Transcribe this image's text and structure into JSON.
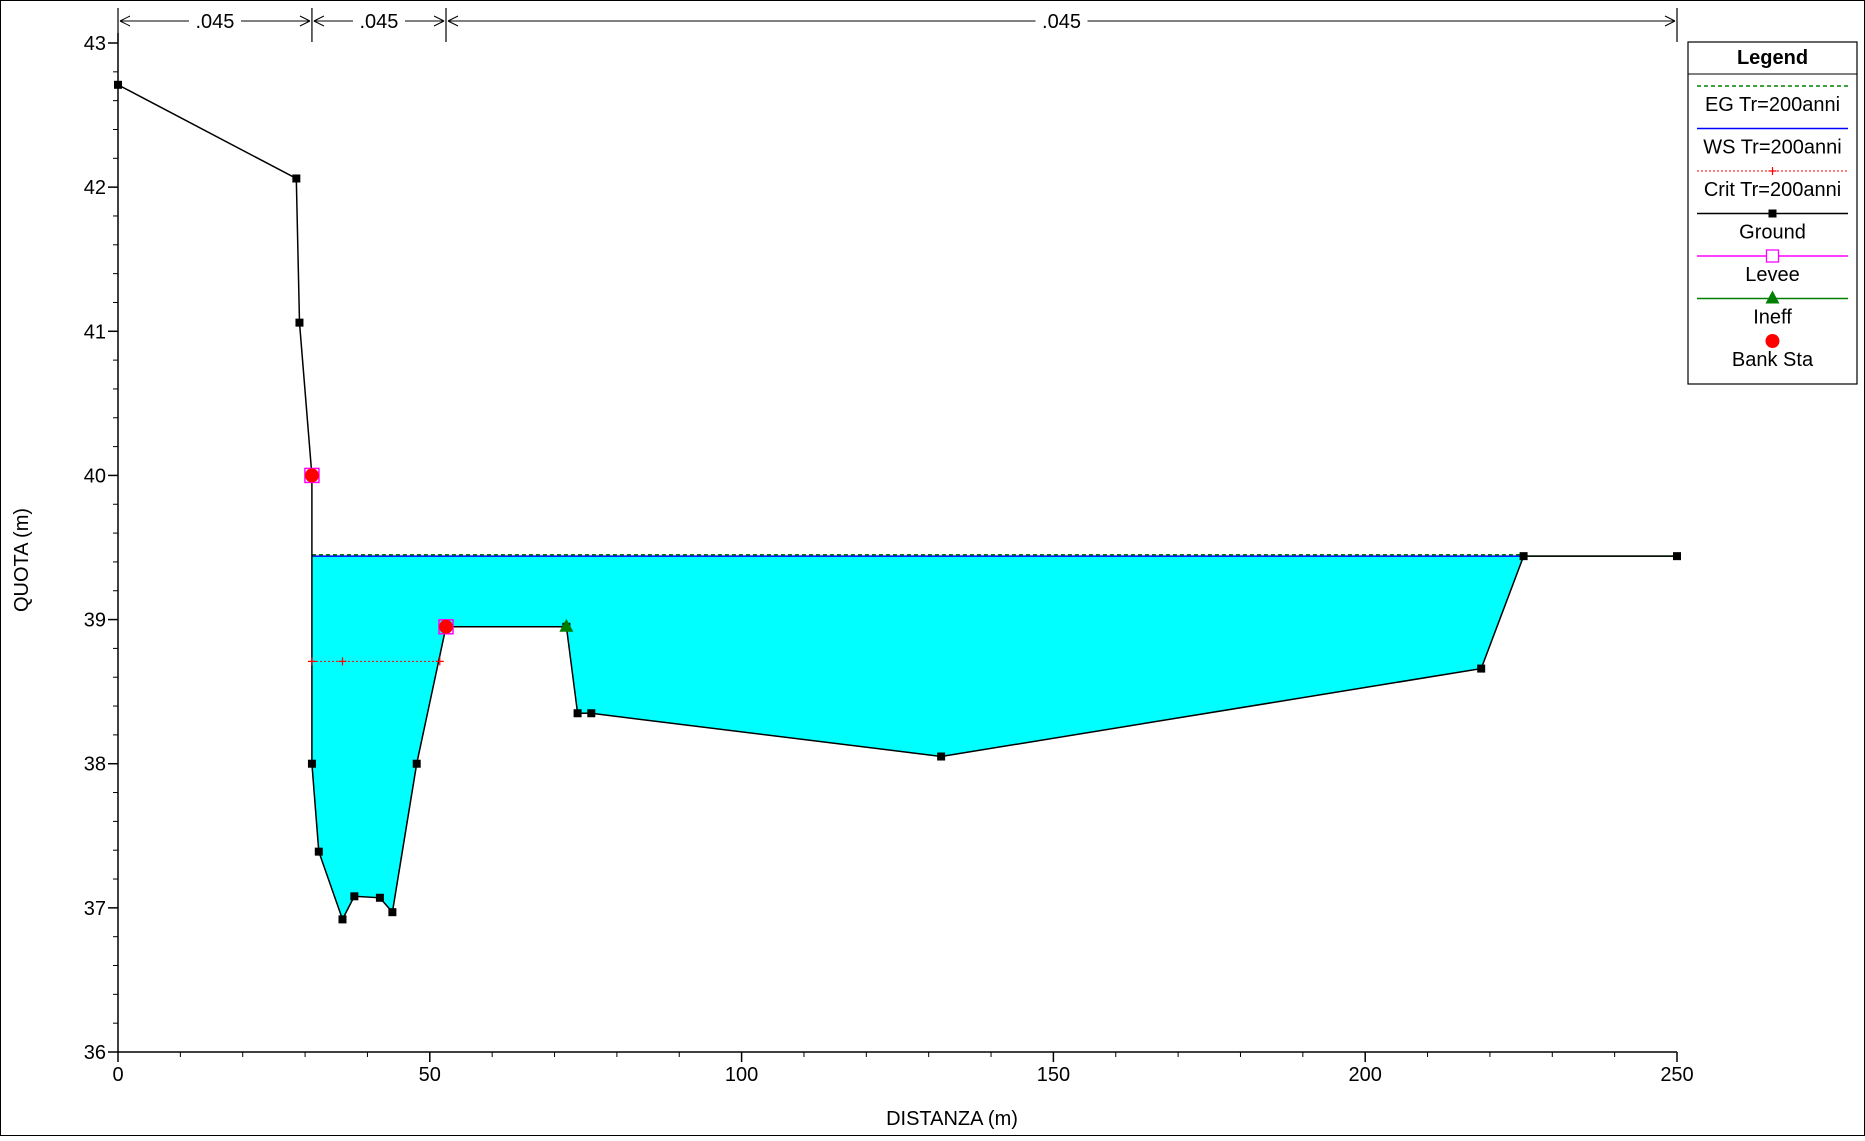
{
  "chart_data": {
    "type": "area",
    "xlabel": "DISTANZA (m)",
    "ylabel": "QUOTA (m)",
    "xlim": [
      0,
      250
    ],
    "ylim": [
      36,
      43
    ],
    "xticks": [
      0,
      50,
      100,
      150,
      200,
      250
    ],
    "xtick_labels": [
      "0",
      "50",
      "100",
      "150",
      "200",
      "250"
    ],
    "yticks": [
      36,
      37,
      38,
      39,
      40,
      41,
      42,
      43
    ],
    "ytick_labels": [
      "36",
      "37",
      "38",
      "39",
      "40",
      "41",
      "42",
      "43"
    ],
    "grid": false,
    "legend_position": "top-right",
    "manning": [
      {
        "from": 0,
        "to": 31.1,
        "label": ".045"
      },
      {
        "from": 31.1,
        "to": 52.6,
        "label": ".045"
      },
      {
        "from": 52.6,
        "to": 250,
        "label": ".045"
      }
    ],
    "ground": {
      "x": [
        0,
        28.6,
        29.1,
        31.1,
        31.1,
        32.2,
        36.0,
        37.9,
        42.0,
        44.0,
        47.9,
        52.6,
        71.9,
        73.7,
        75.9,
        132.0,
        218.6,
        225.4,
        250.0
      ],
      "y": [
        42.71,
        42.06,
        41.06,
        40.0,
        38.0,
        37.39,
        36.92,
        37.08,
        37.07,
        36.97,
        38.0,
        38.95,
        38.95,
        38.35,
        38.35,
        38.05,
        38.66,
        39.44,
        39.44
      ]
    },
    "water_surface": {
      "name": "WS Tr=200anni",
      "elevation": 39.44,
      "x_range": [
        31.1,
        225.4
      ]
    },
    "energy_grade": {
      "name": "EG Tr=200anni",
      "elevation": 39.45
    },
    "critical": {
      "name": "Crit Tr=200anni",
      "elevation": 38.71,
      "x_range": [
        31.1,
        51.6
      ],
      "x_marker": 36.0
    },
    "bank_stations": [
      {
        "x": 31.1,
        "y": 40.0
      },
      {
        "x": 52.6,
        "y": 38.95
      }
    ],
    "levees": [
      {
        "x": 31.1,
        "y": 40.0
      },
      {
        "x": 52.6,
        "y": 38.95
      }
    ],
    "ineffective": {
      "x": [
        52.6,
        71.9
      ],
      "elevation": 38.95,
      "marker_x": 71.9
    },
    "ineffective_right": {
      "x": [
        225.4,
        250.0
      ],
      "elevation": 39.44
    },
    "legend": {
      "title": "Legend",
      "entries": [
        {
          "label": "EG Tr=200anni",
          "style": "dashed",
          "color": "#008000"
        },
        {
          "label": "WS Tr=200anni",
          "style": "solid",
          "color": "#0000ff"
        },
        {
          "label": "Crit Tr=200anni",
          "style": "dotted-plus",
          "color": "#ff0000"
        },
        {
          "label": "Ground",
          "style": "solid-square",
          "color": "#000000"
        },
        {
          "label": "Levee",
          "style": "solid-open-square",
          "color": "#ff00ff"
        },
        {
          "label": "Ineff",
          "style": "solid-triangle",
          "color": "#008000"
        },
        {
          "label": "Bank Sta",
          "style": "circle",
          "color": "#ff0000"
        }
      ]
    },
    "colors": {
      "water_fill": "#00ffff",
      "ground": "#000000",
      "ws": "#0000ff",
      "eg": "#008000",
      "crit": "#ff0000",
      "levee": "#ff00ff",
      "ineff": "#008000",
      "bank": "#ff0000"
    }
  }
}
